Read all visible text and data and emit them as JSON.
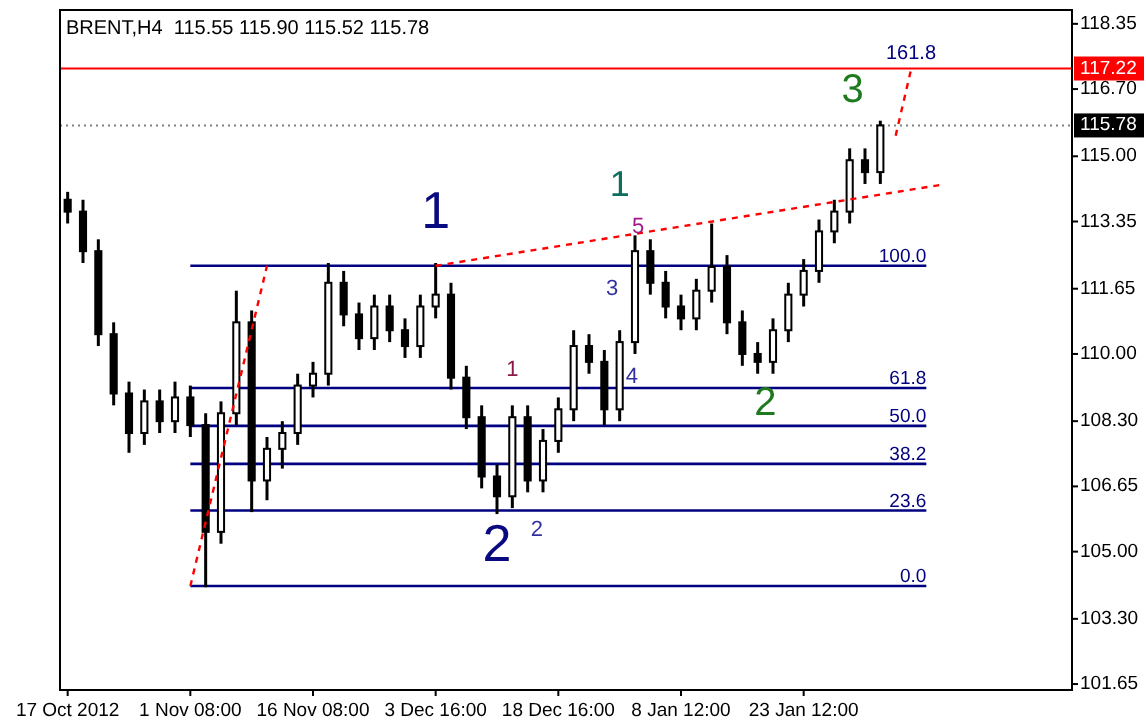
{
  "chart_data": {
    "type": "candlestick",
    "title": "BRENT,H4  115.55 115.90 115.52 115.78",
    "categories": [
      "17 Oct 2012",
      null,
      null,
      null,
      null,
      null,
      null,
      null,
      "1 Nov 08:00",
      null,
      null,
      null,
      null,
      null,
      null,
      null,
      "16 Nov 08:00",
      null,
      null,
      null,
      null,
      null,
      null,
      null,
      "3 Dec 16:00",
      null,
      null,
      null,
      null,
      null,
      null,
      null,
      "18 Dec 16:00",
      null,
      null,
      null,
      null,
      null,
      null,
      null,
      "8 Jan 12:00",
      null,
      null,
      null,
      null,
      null,
      null,
      null,
      "23 Jan 12:00",
      null,
      null,
      null,
      null,
      null,
      null,
      null,
      null,
      null,
      null,
      null,
      null,
      null,
      null,
      null,
      null,
      null
    ],
    "series": [
      {
        "color": "#000000",
        "ohlc": [
          [
            113.9,
            114.1,
            113.3,
            113.6
          ],
          [
            113.6,
            113.9,
            112.3,
            112.6
          ],
          [
            112.6,
            112.9,
            110.2,
            110.5
          ],
          [
            110.5,
            110.8,
            108.7,
            109.0
          ],
          [
            109.0,
            109.3,
            107.5,
            108.0
          ],
          [
            108.0,
            109.1,
            107.7,
            108.8
          ],
          [
            108.8,
            109.1,
            108.0,
            108.3
          ],
          [
            108.3,
            109.3,
            108.0,
            108.9
          ],
          [
            108.9,
            109.2,
            107.9,
            108.2
          ],
          [
            108.2,
            108.5,
            104.1,
            105.5
          ],
          [
            105.5,
            108.8,
            105.2,
            108.5
          ],
          [
            108.5,
            111.6,
            108.2,
            110.8
          ],
          [
            110.8,
            111.1,
            106.0,
            106.8
          ],
          [
            106.8,
            107.9,
            106.3,
            107.6
          ],
          [
            107.6,
            108.3,
            107.1,
            108.0
          ],
          [
            108.0,
            109.5,
            107.7,
            109.2
          ],
          [
            109.2,
            109.8,
            108.9,
            109.5
          ],
          [
            109.5,
            112.3,
            109.2,
            111.8
          ],
          [
            111.8,
            112.1,
            110.7,
            111.0
          ],
          [
            111.0,
            111.3,
            110.1,
            110.4
          ],
          [
            110.4,
            111.5,
            110.1,
            111.2
          ],
          [
            111.2,
            111.5,
            110.3,
            110.6
          ],
          [
            110.6,
            110.9,
            109.9,
            110.2
          ],
          [
            110.2,
            111.5,
            109.9,
            111.2
          ],
          [
            111.2,
            112.3,
            110.9,
            111.5
          ],
          [
            111.5,
            111.8,
            109.1,
            109.4
          ],
          [
            109.4,
            109.7,
            108.1,
            108.4
          ],
          [
            108.4,
            108.7,
            106.6,
            106.9
          ],
          [
            106.9,
            107.2,
            105.95,
            106.4
          ],
          [
            106.4,
            108.7,
            106.1,
            108.4
          ],
          [
            108.4,
            108.7,
            106.5,
            106.8
          ],
          [
            106.8,
            108.1,
            106.5,
            107.8
          ],
          [
            107.8,
            108.9,
            107.5,
            108.6
          ],
          [
            108.6,
            110.6,
            108.3,
            110.2
          ],
          [
            110.2,
            110.5,
            109.5,
            109.8
          ],
          [
            109.8,
            110.1,
            108.2,
            108.6
          ],
          [
            108.6,
            110.6,
            108.3,
            110.3
          ],
          [
            110.3,
            113.0,
            110.0,
            112.6
          ],
          [
            112.6,
            112.9,
            111.5,
            111.8
          ],
          [
            111.8,
            112.1,
            110.9,
            111.2
          ],
          [
            111.2,
            111.5,
            110.6,
            110.9
          ],
          [
            110.9,
            111.9,
            110.6,
            111.6
          ],
          [
            111.6,
            113.3,
            111.3,
            112.2
          ],
          [
            112.2,
            112.5,
            110.5,
            110.8
          ],
          [
            110.8,
            111.1,
            109.7,
            110.0
          ],
          [
            110.0,
            110.3,
            109.5,
            109.8
          ],
          [
            109.8,
            110.9,
            109.5,
            110.6
          ],
          [
            110.6,
            111.8,
            110.3,
            111.5
          ],
          [
            111.5,
            112.4,
            111.2,
            112.1
          ],
          [
            112.1,
            113.4,
            111.8,
            113.1
          ],
          [
            113.1,
            113.9,
            112.8,
            113.6
          ],
          [
            113.6,
            115.2,
            113.3,
            114.9
          ],
          [
            114.9,
            115.2,
            114.3,
            114.6
          ],
          [
            114.6,
            115.9,
            114.3,
            115.78
          ],
          null,
          null,
          null,
          null,
          null,
          null,
          null,
          null,
          null,
          null,
          null,
          null
        ]
      },
      {
        "type": "line",
        "color": "#ff0000",
        "line_style": "dashed",
        "values": [
          null,
          null,
          null,
          null,
          null,
          null,
          null,
          null,
          104.13,
          null,
          null,
          null,
          null,
          112.23,
          null,
          null,
          null,
          null,
          null,
          null,
          null,
          null,
          null,
          null,
          null,
          null,
          null,
          null,
          null,
          null,
          null,
          null,
          null,
          null,
          null,
          null,
          null,
          null,
          null,
          null,
          null,
          null,
          null,
          null,
          null,
          null,
          null,
          null,
          null,
          null,
          null,
          null,
          null,
          null,
          null,
          null,
          null,
          null,
          null,
          null,
          null,
          null,
          null,
          null,
          null,
          null
        ]
      },
      {
        "type": "line",
        "color": "#ff0000",
        "line_style": "dashed",
        "values": [
          null,
          null,
          null,
          null,
          null,
          null,
          null,
          null,
          null,
          null,
          null,
          null,
          null,
          null,
          null,
          null,
          null,
          null,
          null,
          null,
          null,
          null,
          null,
          null,
          112.23,
          null,
          null,
          null,
          null,
          null,
          null,
          null,
          null,
          null,
          null,
          null,
          null,
          null,
          null,
          null,
          null,
          null,
          null,
          null,
          null,
          null,
          null,
          null,
          null,
          null,
          null,
          null,
          null,
          null,
          null,
          null,
          null,
          114.28,
          null,
          null,
          null,
          null,
          null,
          null,
          null,
          null
        ]
      },
      {
        "type": "line",
        "color": "#ff0000",
        "line_style": "dashed",
        "values": [
          null,
          null,
          null,
          null,
          null,
          null,
          null,
          null,
          null,
          null,
          null,
          null,
          null,
          null,
          null,
          null,
          null,
          null,
          null,
          null,
          null,
          null,
          null,
          null,
          null,
          null,
          null,
          null,
          null,
          null,
          null,
          null,
          null,
          null,
          null,
          null,
          null,
          null,
          null,
          null,
          null,
          null,
          null,
          null,
          null,
          null,
          null,
          null,
          null,
          null,
          null,
          null,
          null,
          null,
          115.52,
          117.19,
          null,
          null,
          null,
          null,
          null,
          null,
          null,
          null,
          null,
          null
        ]
      }
    ],
    "ylim": [
      101.5,
      118.7
    ],
    "yticks": [
      {
        "value": 101.65,
        "label": "101.65"
      },
      {
        "value": 103.3,
        "label": "103.30"
      },
      {
        "value": 105.0,
        "label": "105.00"
      },
      {
        "value": 106.65,
        "label": "106.65"
      },
      {
        "value": 108.3,
        "label": "108.30"
      },
      {
        "value": 110.0,
        "label": "110.00"
      },
      {
        "value": 111.65,
        "label": "111.65"
      },
      {
        "value": 113.35,
        "label": "113.35"
      },
      {
        "value": 115.0,
        "label": "115.00"
      },
      {
        "value": 116.7,
        "label": "116.70"
      },
      {
        "value": 118.35,
        "label": "118.35"
      }
    ],
    "ref_lines": [
      {
        "axis": "y",
        "value": 104.13,
        "color": "#000080"
      },
      {
        "axis": "y",
        "value": 106.04,
        "color": "#000080"
      },
      {
        "axis": "y",
        "value": 107.22,
        "color": "#000080"
      },
      {
        "axis": "y",
        "value": 108.18,
        "color": "#000080"
      },
      {
        "axis": "y",
        "value": 109.14,
        "color": "#000080"
      },
      {
        "axis": "y",
        "value": 112.23,
        "color": "#000080"
      },
      {
        "axis": "y",
        "value": 117.22,
        "label": "117.22",
        "color": "#ff0000",
        "line_style": "solid"
      },
      {
        "axis": "y",
        "value": 115.78,
        "label": "115.78",
        "color": "#808080",
        "line_style": "dotted"
      }
    ],
    "annotations": [
      "1",
      "2",
      "1",
      "2",
      "3",
      "1",
      "2",
      "3",
      "4",
      "5",
      "161.8",
      "0.0",
      "23.6",
      "38.2",
      "50.0",
      "61.8",
      "100.0"
    ],
    "grid": false
  }
}
